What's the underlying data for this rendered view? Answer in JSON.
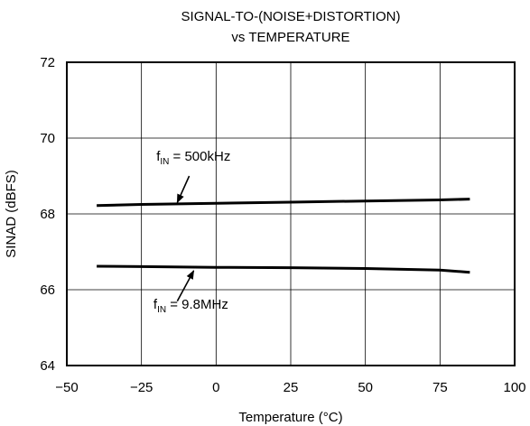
{
  "chart_data": {
    "type": "line",
    "title_line1": "SIGNAL-TO-(NOISE+DISTORTION)",
    "title_line2": "vs TEMPERATURE",
    "xlabel": "Temperature (°C)",
    "ylabel": "SINAD (dBFS)",
    "xlim": [
      -50,
      100
    ],
    "ylim": [
      64,
      72
    ],
    "xticks": [
      -50,
      -25,
      0,
      25,
      50,
      75,
      100
    ],
    "yticks": [
      64,
      66,
      68,
      70,
      72
    ],
    "xtick_labels": [
      "−50",
      "−25",
      "0",
      "25",
      "50",
      "75",
      "100"
    ],
    "ytick_labels": [
      "64",
      "66",
      "68",
      "70",
      "72"
    ],
    "grid": true,
    "series": [
      {
        "x": [
          -40,
          -25,
          0,
          25,
          50,
          75,
          85
        ],
        "y": [
          68.22,
          68.25,
          68.28,
          68.31,
          68.34,
          68.37,
          68.39
        ]
      },
      {
        "x": [
          -40,
          -25,
          0,
          25,
          50,
          75,
          85
        ],
        "y": [
          66.62,
          66.61,
          66.59,
          66.58,
          66.56,
          66.52,
          66.46
        ]
      }
    ],
    "annotations": [
      {
        "prefix": "f",
        "sub": "IN",
        "text": " = 500kHz",
        "label_at": [
          -20,
          69.4
        ],
        "arrow_from": [
          -9,
          69.0
        ],
        "arrow_to": [
          -13,
          68.3
        ]
      },
      {
        "prefix": "f",
        "sub": "IN",
        "text": " = 9.8MHz",
        "label_at": [
          -21,
          65.5
        ],
        "arrow_from": [
          -13,
          65.7
        ],
        "arrow_to": [
          -7.5,
          66.5
        ]
      }
    ]
  }
}
